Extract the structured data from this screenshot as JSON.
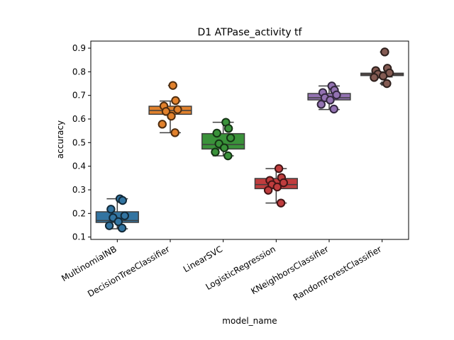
{
  "chart_data": {
    "type": "box",
    "title": "D1 ATPase_activity tf",
    "xlabel": "model_name",
    "ylabel": "accuracy",
    "ylim": [
      0.09,
      0.93
    ],
    "yticks": [
      0.1,
      0.2,
      0.3,
      0.4,
      0.5,
      0.6,
      0.7,
      0.8,
      0.9
    ],
    "grid": false,
    "categories": [
      "MultinomialNB",
      "DecisionTreeClassifier",
      "LinearSVC",
      "LogisticRegression",
      "KNeighborsClassifier",
      "RandomForestClassifier"
    ],
    "series": [
      {
        "category": "MultinomialNB",
        "color": "#3274a1",
        "box": {
          "whisker_low": 0.135,
          "q1": 0.162,
          "median": 0.17,
          "q3": 0.207,
          "whisker_high": 0.262
        },
        "outliers": [],
        "points": [
          0.262,
          0.255,
          0.218,
          0.19,
          0.182,
          0.165,
          0.148,
          0.138
        ]
      },
      {
        "category": "DecisionTreeClassifier",
        "color": "#e1812c",
        "box": {
          "whisker_low": 0.542,
          "q1": 0.62,
          "median": 0.636,
          "q3": 0.654,
          "whisker_high": 0.676
        },
        "outliers": [
          0.742
        ],
        "points": [
          0.742,
          0.678,
          0.655,
          0.64,
          0.632,
          0.612,
          0.578,
          0.542
        ]
      },
      {
        "category": "LinearSVC",
        "color": "#3a923a",
        "box": {
          "whisker_low": 0.444,
          "q1": 0.473,
          "median": 0.492,
          "q3": 0.538,
          "whisker_high": 0.586
        },
        "outliers": [],
        "points": [
          0.586,
          0.56,
          0.54,
          0.52,
          0.495,
          0.478,
          0.46,
          0.444
        ]
      },
      {
        "category": "LogisticRegression",
        "color": "#c03d3e",
        "box": {
          "whisker_low": 0.244,
          "q1": 0.305,
          "median": 0.322,
          "q3": 0.348,
          "whisker_high": 0.39
        },
        "outliers": [],
        "points": [
          0.39,
          0.352,
          0.34,
          0.33,
          0.322,
          0.312,
          0.298,
          0.244
        ]
      },
      {
        "category": "KNeighborsClassifier",
        "color": "#9372b2",
        "box": {
          "whisker_low": 0.64,
          "q1": 0.681,
          "median": 0.69,
          "q3": 0.708,
          "whisker_high": 0.74
        },
        "outliers": [],
        "points": [
          0.74,
          0.722,
          0.712,
          0.702,
          0.69,
          0.68,
          0.662,
          0.642
        ]
      },
      {
        "category": "RandomForestClassifier",
        "color": "#845b53",
        "box": {
          "whisker_low": 0.778,
          "q1": 0.784,
          "median": 0.789,
          "q3": 0.794,
          "whisker_high": 0.8
        },
        "outliers": [
          0.884,
          0.75
        ],
        "points": [
          0.884,
          0.815,
          0.805,
          0.795,
          0.79,
          0.782,
          0.776,
          0.75
        ]
      }
    ]
  }
}
